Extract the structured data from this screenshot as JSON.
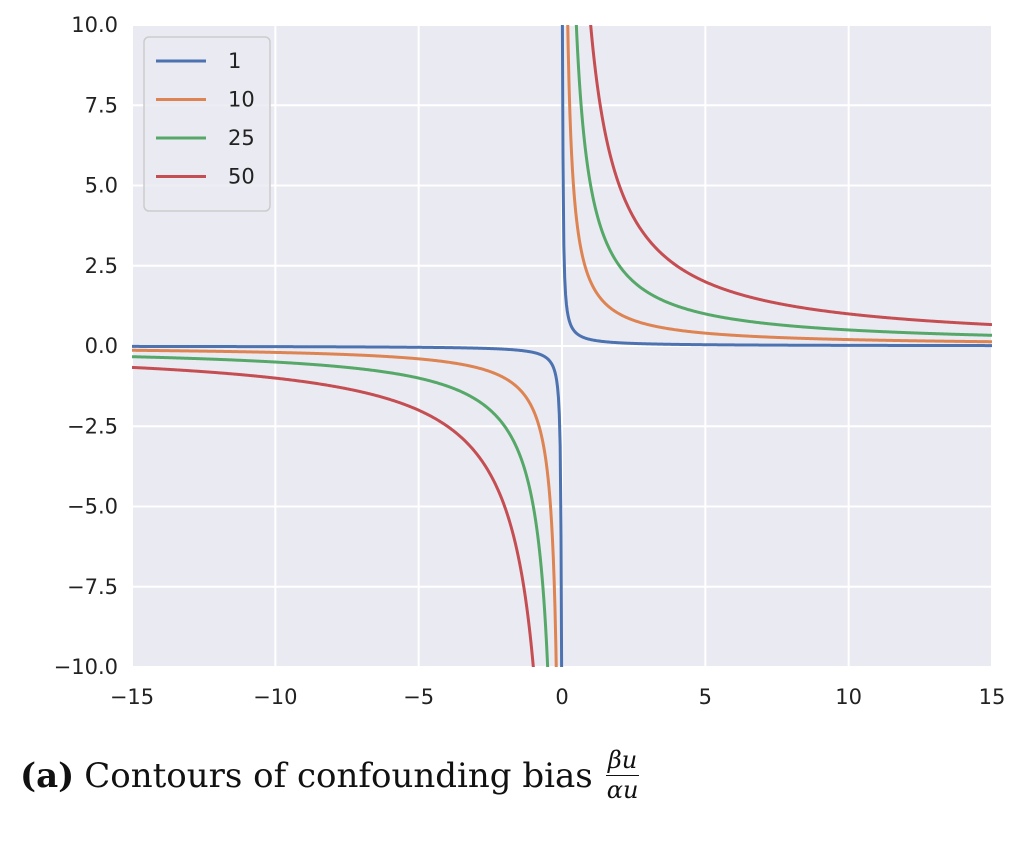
{
  "chart_data": {
    "type": "line",
    "xlim": [
      -15,
      15
    ],
    "ylim": [
      -10,
      10
    ],
    "x_ticks": [
      -15,
      -10,
      -5,
      0,
      5,
      10,
      15
    ],
    "x_tick_labels": [
      "−15",
      "−10",
      "−5",
      "0",
      "5",
      "10",
      "15"
    ],
    "y_ticks": [
      10,
      7.5,
      5,
      2.5,
      0,
      -2.5,
      -5,
      -7.5,
      -10
    ],
    "y_tick_labels": [
      "10.0",
      "7.5",
      "5.0",
      "2.5",
      "0.0",
      "−2.5",
      "−5.0",
      "−7.5",
      "−10.0"
    ],
    "grid": true,
    "legend_position": "top-left",
    "series": [
      {
        "name": "1",
        "level": 1,
        "color": "#4c72b0"
      },
      {
        "name": "10",
        "level": 10,
        "color": "#dd8452"
      },
      {
        "name": "25",
        "level": 25,
        "color": "#55a868"
      },
      {
        "name": "50",
        "level": 50,
        "color": "#c44e52"
      }
    ],
    "background_color": "#eaeaf2",
    "grid_color": "#ffffff"
  },
  "caption": {
    "label": "(a)",
    "text": "Contours of confounding bias",
    "numerator": "βu",
    "denominator": "αu"
  }
}
